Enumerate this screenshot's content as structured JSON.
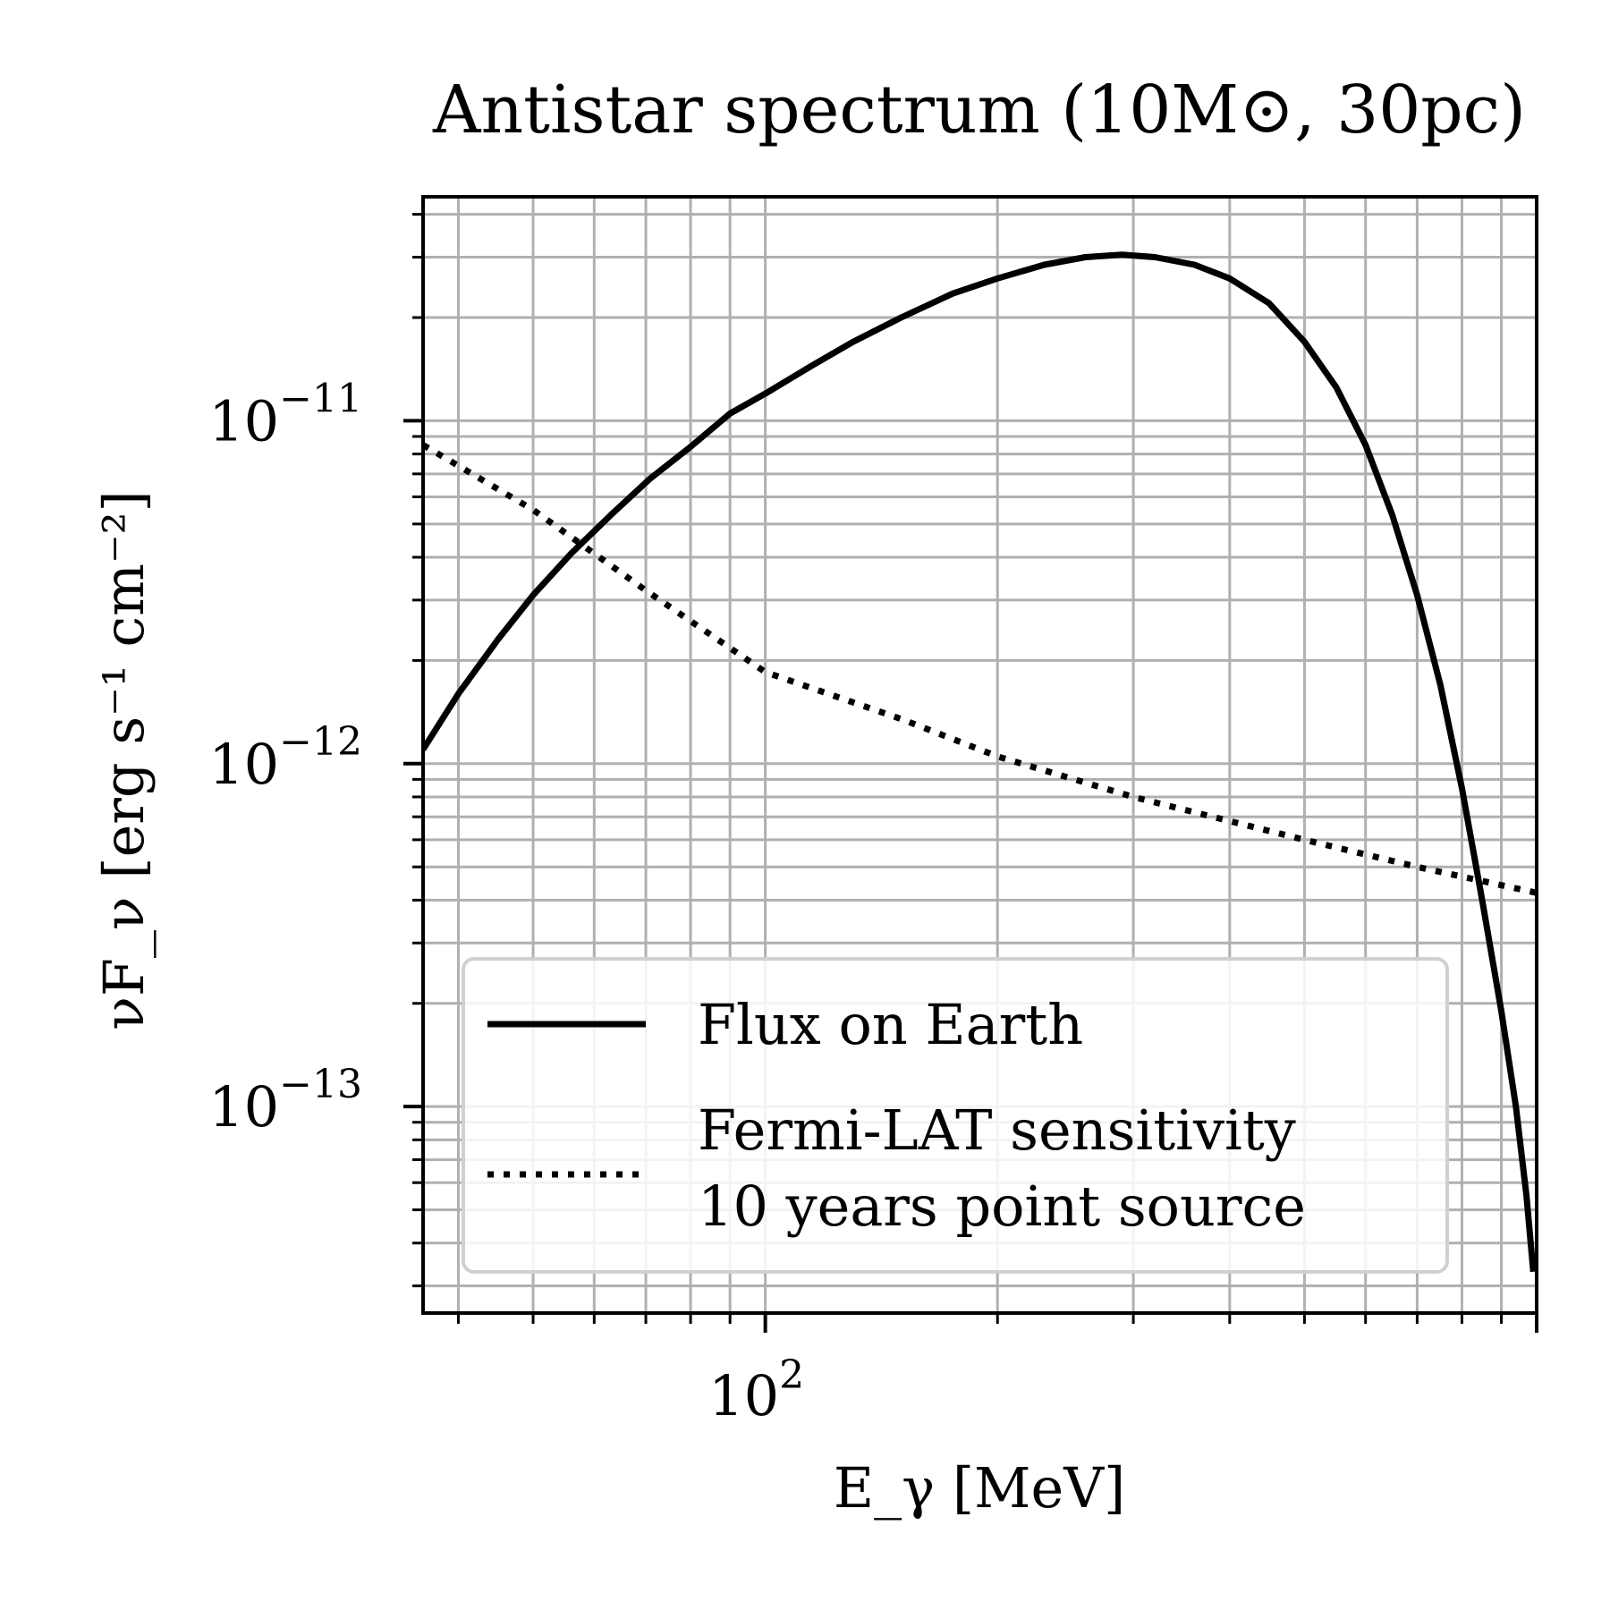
{
  "chart_data": {
    "type": "line",
    "title": "Antistar spectrum (10M⊙, 30pc)",
    "xlabel": "E_γ [MeV]",
    "ylabel": "νF_ν [erg s⁻¹ cm⁻²]",
    "xscale": "log",
    "yscale": "log",
    "xlim": [
      36,
      1000
    ],
    "ylim": [
      2.5e-14,
      4.5e-11
    ],
    "grid": true,
    "legend_position": "lower-left",
    "x_ticks": [
      {
        "base": "10",
        "exp": "2"
      }
    ],
    "y_ticks": [
      {
        "base": "10",
        "exp": "−11"
      },
      {
        "base": "10",
        "exp": "−12"
      },
      {
        "base": "10",
        "exp": "−13"
      }
    ],
    "series": [
      {
        "name": "Flux on Earth",
        "style": "solid",
        "color": "#000000",
        "points": [
          [
            36,
            1.1e-12
          ],
          [
            40,
            1.6e-12
          ],
          [
            45,
            2.3e-12
          ],
          [
            50,
            3.1e-12
          ],
          [
            56,
            4.1e-12
          ],
          [
            63,
            5.3e-12
          ],
          [
            71,
            6.8e-12
          ],
          [
            80,
            8.4e-12
          ],
          [
            90,
            1.05e-11
          ],
          [
            100,
            1.2e-11
          ],
          [
            115,
            1.45e-11
          ],
          [
            130,
            1.7e-11
          ],
          [
            150,
            2e-11
          ],
          [
            175,
            2.35e-11
          ],
          [
            200,
            2.6e-11
          ],
          [
            230,
            2.85e-11
          ],
          [
            260,
            3e-11
          ],
          [
            290,
            3.05e-11
          ],
          [
            320,
            3e-11
          ],
          [
            360,
            2.85e-11
          ],
          [
            400,
            2.6e-11
          ],
          [
            450,
            2.2e-11
          ],
          [
            500,
            1.7e-11
          ],
          [
            550,
            1.25e-11
          ],
          [
            600,
            8.5e-12
          ],
          [
            650,
            5.3e-12
          ],
          [
            700,
            3.1e-12
          ],
          [
            750,
            1.7e-12
          ],
          [
            800,
            8.5e-13
          ],
          [
            850,
            4e-13
          ],
          [
            900,
            1.9e-13
          ],
          [
            940,
            1e-13
          ],
          [
            970,
            5.5e-14
          ],
          [
            990,
            3.3e-14
          ]
        ]
      },
      {
        "name": "Fermi-LAT sensitivity\n10 years point source",
        "legend_lines": [
          "Fermi-LAT sensitivity",
          "10 years point source"
        ],
        "style": "dotted",
        "color": "#000000",
        "points": [
          [
            36,
            8.5e-12
          ],
          [
            50,
            5.5e-12
          ],
          [
            70,
            3.2e-12
          ],
          [
            100,
            1.85e-12
          ],
          [
            150,
            1.35e-12
          ],
          [
            200,
            1.05e-12
          ],
          [
            300,
            8e-13
          ],
          [
            500,
            6e-13
          ],
          [
            700,
            5e-13
          ],
          [
            1000,
            4.2e-13
          ]
        ]
      }
    ]
  }
}
